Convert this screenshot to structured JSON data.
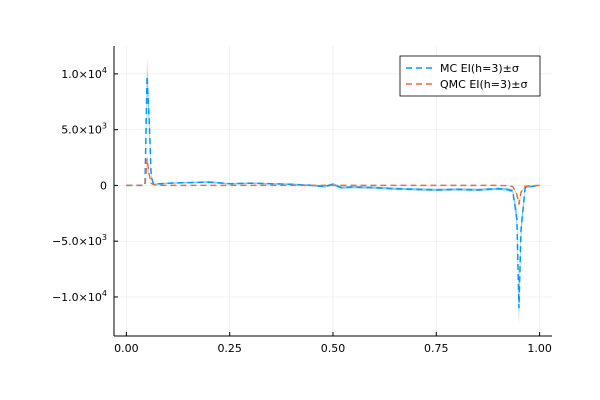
{
  "chart_data": {
    "type": "line",
    "title": "",
    "xlabel": "",
    "ylabel": "",
    "xlim": [
      -0.03,
      1.03
    ],
    "ylim": [
      -13500,
      12500
    ],
    "grid": true,
    "legend_position": "top-right",
    "x_ticks": [
      {
        "value": 0.0,
        "label": "0.00"
      },
      {
        "value": 0.25,
        "label": "0.25"
      },
      {
        "value": 0.5,
        "label": "0.50"
      },
      {
        "value": 0.75,
        "label": "0.75"
      },
      {
        "value": 1.0,
        "label": "1.00"
      }
    ],
    "y_ticks": [
      {
        "value": 10000,
        "mant": "1.0×10",
        "exp": "4"
      },
      {
        "value": 5000,
        "mant": "5.0×10",
        "exp": "3"
      },
      {
        "value": 0,
        "mant": "0",
        "exp": ""
      },
      {
        "value": -5000,
        "mant": "−5.0×10",
        "exp": "3"
      },
      {
        "value": -10000,
        "mant": "−1.0×10",
        "exp": "4"
      }
    ],
    "series": [
      {
        "name": "MC EI(h=3)±σ",
        "color": "#009AFA",
        "dash": "dashed",
        "x": [
          0.0,
          0.04,
          0.045,
          0.05,
          0.055,
          0.06,
          0.065,
          0.07,
          0.08,
          0.1,
          0.15,
          0.2,
          0.25,
          0.3,
          0.35,
          0.4,
          0.45,
          0.48,
          0.5,
          0.52,
          0.55,
          0.6,
          0.65,
          0.7,
          0.75,
          0.8,
          0.85,
          0.9,
          0.92,
          0.935,
          0.945,
          0.95,
          0.955,
          0.965,
          0.98,
          1.0
        ],
        "y": [
          0,
          0,
          0,
          9800,
          6000,
          800,
          200,
          100,
          150,
          200,
          250,
          300,
          150,
          200,
          150,
          100,
          0,
          -100,
          100,
          -200,
          -150,
          -200,
          -300,
          -350,
          -400,
          -350,
          -400,
          -300,
          -350,
          -500,
          -3000,
          -11000,
          -4000,
          -200,
          -100,
          0
        ],
        "err": [
          0,
          0,
          0,
          1500,
          900,
          200,
          80,
          60,
          60,
          60,
          70,
          80,
          70,
          70,
          70,
          70,
          80,
          100,
          120,
          100,
          100,
          100,
          100,
          100,
          100,
          100,
          100,
          100,
          120,
          150,
          700,
          1500,
          800,
          80,
          60,
          0
        ]
      },
      {
        "name": "QMC EI(h=3)±σ",
        "color": "#E26F46",
        "dash": "dashed",
        "x": [
          0.0,
          0.04,
          0.045,
          0.05,
          0.055,
          0.06,
          0.065,
          0.07,
          0.08,
          0.1,
          0.2,
          0.3,
          0.4,
          0.5,
          0.6,
          0.7,
          0.8,
          0.9,
          0.92,
          0.935,
          0.945,
          0.95,
          0.955,
          0.965,
          0.98,
          1.0
        ],
        "y": [
          0,
          0,
          0,
          2400,
          1000,
          200,
          80,
          50,
          20,
          0,
          0,
          0,
          0,
          0,
          0,
          0,
          0,
          0,
          -20,
          -100,
          -800,
          -1700,
          -600,
          -80,
          -20,
          0
        ],
        "err": [
          0,
          0,
          0,
          300,
          150,
          40,
          20,
          10,
          10,
          5,
          5,
          5,
          5,
          5,
          5,
          5,
          5,
          5,
          10,
          20,
          100,
          200,
          80,
          20,
          10,
          0
        ]
      }
    ]
  }
}
